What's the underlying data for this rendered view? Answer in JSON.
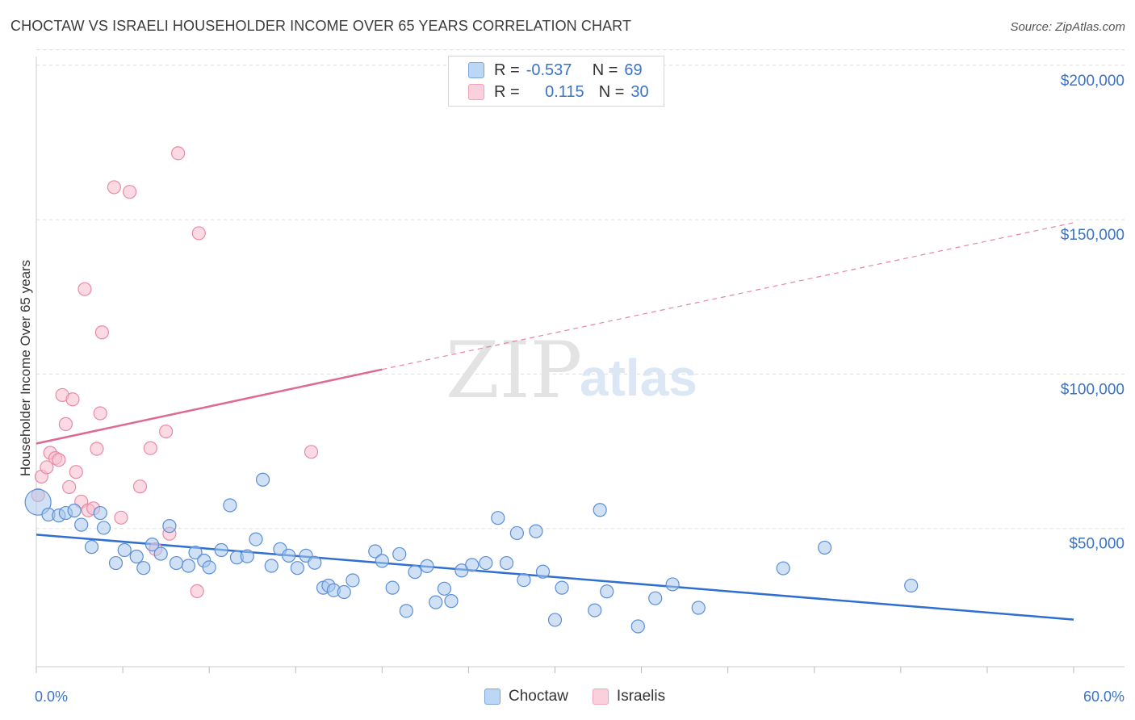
{
  "header": {
    "title": "CHOCTAW VS ISRAELI HOUSEHOLDER INCOME OVER 65 YEARS CORRELATION CHART",
    "source": "Source: ZipAtlas.com"
  },
  "watermark": {
    "zip": "ZIP",
    "atlas": "atlas"
  },
  "legend": {
    "rows": [
      {
        "r_label": "R =",
        "r_value": "-0.537",
        "n_label": "N =",
        "n_value": "69"
      },
      {
        "r_label": "R =",
        "r_value": "0.115",
        "n_label": "N =",
        "n_value": "30"
      }
    ]
  },
  "bottom_legend": {
    "items": [
      "Choctaw",
      "Israelis"
    ]
  },
  "colors": {
    "choctaw_fill": "#a9c8ee",
    "choctaw_stroke": "#5b8fd6",
    "choctaw_line": "#2f6fd0",
    "israeli_fill": "#f7bccd",
    "israeli_stroke": "#e88aa6",
    "israeli_line": "#e0698f",
    "axis_text": "#3a73c8",
    "grid": "#dddddd"
  },
  "chart_data": {
    "type": "scatter",
    "title": "CHOCTAW VS ISRAELI HOUSEHOLDER INCOME OVER 65 YEARS CORRELATION CHART",
    "xlabel": "",
    "ylabel": "Householder Income Over 65 years",
    "xlim": [
      0,
      60
    ],
    "ylim": [
      0,
      210000
    ],
    "x_tick_labels": [
      "0.0%",
      "60.0%"
    ],
    "y_ticks": [
      50000,
      100000,
      150000,
      200000
    ],
    "y_tick_labels": [
      "$50,000",
      "$100,000",
      "$150,000",
      "$200,000"
    ],
    "grid": true,
    "legend_position": "top-center",
    "series": [
      {
        "name": "Choctaw",
        "R": -0.537,
        "N": 69,
        "trend": {
          "x": [
            0,
            60
          ],
          "y": [
            48000,
            20500
          ],
          "style": "solid"
        },
        "points": [
          [
            0.1,
            58500
          ],
          [
            0.7,
            54500
          ],
          [
            1.3,
            54200
          ],
          [
            1.7,
            55000
          ],
          [
            2.2,
            55800
          ],
          [
            2.6,
            51200
          ],
          [
            3.2,
            44000
          ],
          [
            3.7,
            55000
          ],
          [
            3.9,
            50200
          ],
          [
            4.6,
            38800
          ],
          [
            5.1,
            43000
          ],
          [
            5.8,
            40900
          ],
          [
            6.2,
            37200
          ],
          [
            6.7,
            44800
          ],
          [
            7.2,
            41800
          ],
          [
            7.7,
            50800
          ],
          [
            8.1,
            38800
          ],
          [
            8.8,
            37900
          ],
          [
            9.2,
            42200
          ],
          [
            9.7,
            39600
          ],
          [
            10.0,
            37400
          ],
          [
            10.7,
            43000
          ],
          [
            11.2,
            57500
          ],
          [
            11.6,
            40600
          ],
          [
            12.2,
            41000
          ],
          [
            12.7,
            46500
          ],
          [
            13.1,
            65800
          ],
          [
            13.6,
            37900
          ],
          [
            14.1,
            43300
          ],
          [
            14.6,
            41200
          ],
          [
            15.1,
            37200
          ],
          [
            15.6,
            41200
          ],
          [
            16.1,
            38900
          ],
          [
            16.6,
            30800
          ],
          [
            16.9,
            31500
          ],
          [
            17.2,
            30000
          ],
          [
            17.8,
            29400
          ],
          [
            18.3,
            33200
          ],
          [
            19.6,
            42600
          ],
          [
            20.0,
            39500
          ],
          [
            20.6,
            30800
          ],
          [
            21.0,
            41700
          ],
          [
            21.4,
            23300
          ],
          [
            21.9,
            35900
          ],
          [
            22.6,
            37800
          ],
          [
            23.1,
            26100
          ],
          [
            23.6,
            30500
          ],
          [
            24.0,
            26500
          ],
          [
            24.6,
            36400
          ],
          [
            25.2,
            38200
          ],
          [
            26.0,
            38800
          ],
          [
            26.7,
            53400
          ],
          [
            27.2,
            38800
          ],
          [
            27.8,
            48500
          ],
          [
            28.2,
            33300
          ],
          [
            28.9,
            49100
          ],
          [
            29.3,
            36000
          ],
          [
            30.0,
            20400
          ],
          [
            30.4,
            30800
          ],
          [
            32.3,
            23500
          ],
          [
            32.6,
            56000
          ],
          [
            33.0,
            29600
          ],
          [
            34.8,
            18300
          ],
          [
            35.8,
            27400
          ],
          [
            36.8,
            31900
          ],
          [
            38.3,
            24300
          ],
          [
            43.2,
            37100
          ],
          [
            45.6,
            43800
          ],
          [
            50.6,
            31500
          ]
        ]
      },
      {
        "name": "Israelis",
        "R": 0.115,
        "N": 30,
        "trend": {
          "x": [
            0,
            20
          ],
          "y": [
            77500,
            101500
          ],
          "style": "solid",
          "extension": {
            "x": [
              20,
              60
            ],
            "y": [
              101500,
              149000
            ],
            "style": "dashed"
          }
        },
        "points": [
          [
            0.1,
            60800
          ],
          [
            0.3,
            66800
          ],
          [
            0.6,
            69800
          ],
          [
            0.8,
            74500
          ],
          [
            1.1,
            72800
          ],
          [
            1.3,
            72200
          ],
          [
            1.5,
            93200
          ],
          [
            1.7,
            83800
          ],
          [
            1.9,
            63400
          ],
          [
            2.1,
            91800
          ],
          [
            2.3,
            68300
          ],
          [
            2.6,
            58700
          ],
          [
            2.8,
            127500
          ],
          [
            3.0,
            55900
          ],
          [
            3.3,
            56500
          ],
          [
            3.5,
            75800
          ],
          [
            3.7,
            87300
          ],
          [
            3.8,
            113500
          ],
          [
            4.5,
            160500
          ],
          [
            4.9,
            53500
          ],
          [
            5.4,
            159000
          ],
          [
            6.0,
            63600
          ],
          [
            6.6,
            76000
          ],
          [
            6.9,
            43300
          ],
          [
            7.5,
            81400
          ],
          [
            7.7,
            48300
          ],
          [
            8.2,
            171500
          ],
          [
            9.3,
            29700
          ],
          [
            9.4,
            145600
          ],
          [
            15.9,
            74800
          ]
        ]
      }
    ]
  },
  "layout_note": ""
}
